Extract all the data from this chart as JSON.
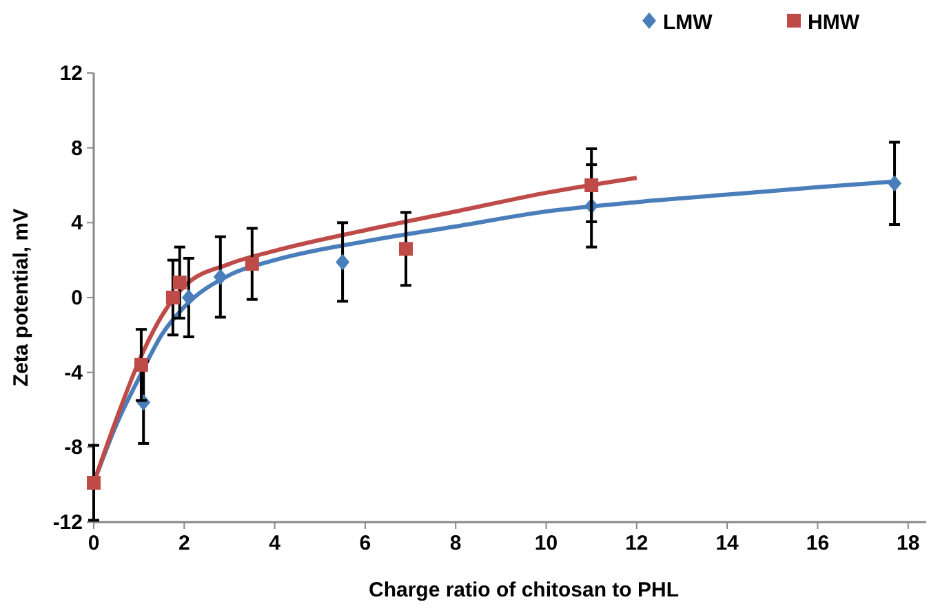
{
  "chart_data": {
    "type": "scatter",
    "xlabel": "Charge ratio of chitosan to PHL",
    "ylabel": "Zeta potential, mV",
    "xlim": [
      0,
      18.4
    ],
    "xticks": [
      0,
      2,
      4,
      6,
      8,
      10,
      12,
      14,
      16,
      18
    ],
    "ylim": [
      -12,
      12
    ],
    "yticks": [
      -12,
      -8,
      -4,
      0,
      4,
      8,
      12
    ],
    "grid": false,
    "legend": "top right",
    "series": [
      {
        "name": "LMW",
        "marker": "diamond",
        "color": "#4a7ebb",
        "x": [
          1.1,
          2.1,
          2.8,
          5.5,
          11,
          17.7
        ],
        "values": [
          -5.6,
          0,
          1.1,
          1.9,
          4.9,
          6.1
        ],
        "errors": [
          2.2,
          2.1,
          2.15,
          2.1,
          2.2,
          2.2
        ]
      },
      {
        "name": "HMW",
        "marker": "square",
        "color": "#be4b48",
        "x": [
          0,
          1.05,
          1.75,
          1.9,
          3.5,
          6.9,
          11
        ],
        "values": [
          -9.9,
          -3.6,
          0,
          0.8,
          1.8,
          2.6,
          6.0
        ],
        "errors": [
          2,
          1.9,
          2,
          1.9,
          1.9,
          1.95,
          1.95
        ]
      },
      {
        "type": "line",
        "color": "#4a7ebb",
        "x": [
          0,
          0.5,
          1,
          1.5,
          2,
          3,
          4,
          6,
          8,
          10,
          12,
          14,
          16,
          17.7
        ],
        "values": [
          -9.9,
          -6.8,
          -4.3,
          -2,
          -0.5,
          1.2,
          2,
          3,
          3.8,
          4.6,
          5.1,
          5.5,
          5.9,
          6.2
        ]
      },
      {
        "type": "line",
        "color": "#be4b48",
        "x": [
          0,
          0.5,
          1,
          1.5,
          2,
          3,
          4,
          6,
          8,
          10,
          12
        ],
        "values": [
          -9.9,
          -6.5,
          -3.4,
          -1,
          0.6,
          1.8,
          2.5,
          3.6,
          4.6,
          5.6,
          6.4
        ]
      }
    ]
  }
}
